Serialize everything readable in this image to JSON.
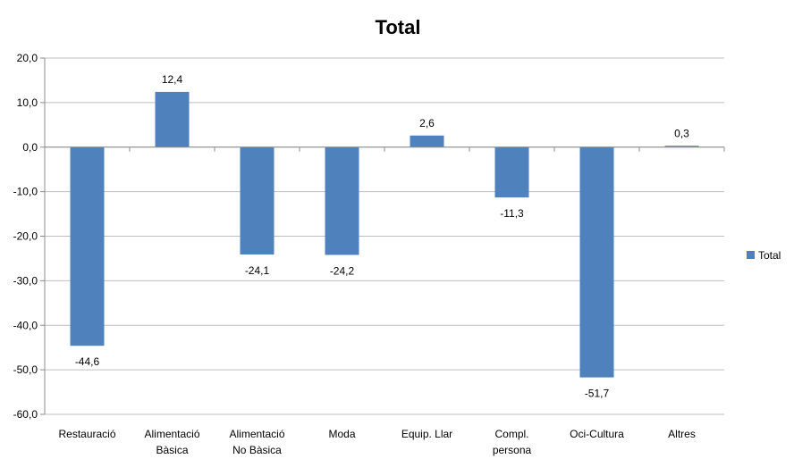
{
  "chart_data": {
    "type": "bar",
    "title": "Total",
    "categories": [
      [
        "Restauració"
      ],
      [
        "Alimentació",
        "Bàsica"
      ],
      [
        "Alimentació",
        "No Bàsica"
      ],
      [
        "Moda"
      ],
      [
        "Equip. Llar"
      ],
      [
        "Compl.",
        "persona"
      ],
      [
        "Oci-Cultura"
      ],
      [
        "Altres"
      ]
    ],
    "series": [
      {
        "name": "Total",
        "values": [
          -44.6,
          12.4,
          -24.1,
          -24.2,
          2.6,
          -11.3,
          -51.7,
          0.3
        ]
      }
    ],
    "value_labels": [
      "-44,6",
      "12,4",
      "-24,1",
      "-24,2",
      "2,6",
      "-11,3",
      "-51,7",
      "0,3"
    ],
    "ylim": [
      -60,
      20
    ],
    "yticks": [
      20,
      10,
      0,
      -10,
      -20,
      -30,
      -40,
      -50,
      -60
    ],
    "ytick_labels": [
      "20,0",
      "10,0",
      "0,0",
      "-10,0",
      "-20,0",
      "-30,0",
      "-40,0",
      "-50,0",
      "-60,0"
    ],
    "grid": true,
    "legend": "right",
    "colors": {
      "bar": "#4f81bd",
      "grid": "#bfbfbf",
      "axis": "#8c8c8c"
    }
  }
}
